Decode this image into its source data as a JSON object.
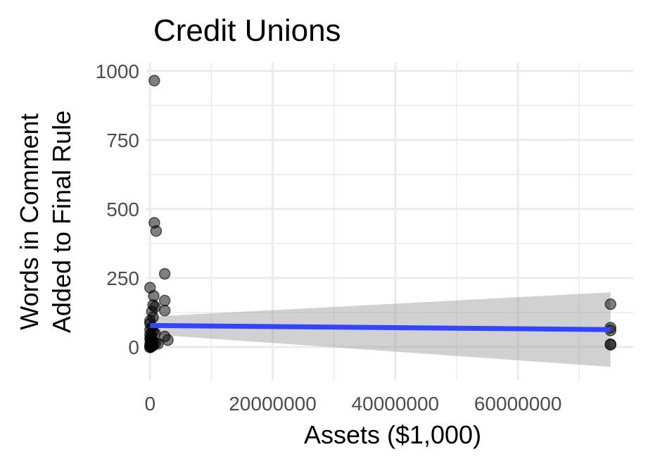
{
  "chart_data": {
    "type": "scatter",
    "title": "Credit Unions",
    "xlabel": "Assets ($1,000)",
    "ylabel_lines": [
      "Words in Comment",
      "Added to Final Rule"
    ],
    "x_ticks": [
      0,
      20000000,
      40000000,
      60000000
    ],
    "x_tick_labels": [
      "0",
      "20000000",
      "40000000",
      "60000000"
    ],
    "y_ticks": [
      0,
      250,
      500,
      750,
      1000
    ],
    "y_tick_labels": [
      "0",
      "250",
      "500",
      "750",
      "1000"
    ],
    "xlim": [
      -600000,
      78800000
    ],
    "ylim": [
      -120,
      1030
    ],
    "grid": true,
    "legend": "none",
    "points": [
      {
        "x": 700000,
        "y": 965
      },
      {
        "x": 700000,
        "y": 450
      },
      {
        "x": 1000000,
        "y": 420
      },
      {
        "x": 2400000,
        "y": 265
      },
      {
        "x": 0,
        "y": 215
      },
      {
        "x": 600000,
        "y": 185
      },
      {
        "x": 2400000,
        "y": 168
      },
      {
        "x": 500000,
        "y": 152
      },
      {
        "x": 800000,
        "y": 145
      },
      {
        "x": 2400000,
        "y": 132
      },
      {
        "x": 300000,
        "y": 128
      },
      {
        "x": 500000,
        "y": 108
      },
      {
        "x": 0,
        "y": 95
      },
      {
        "x": 0,
        "y": 85
      },
      {
        "x": 300000,
        "y": 70
      },
      {
        "x": 0,
        "y": 62
      },
      {
        "x": 500000,
        "y": 55
      },
      {
        "x": 800000,
        "y": 50
      },
      {
        "x": 0,
        "y": 45
      },
      {
        "x": 200000,
        "y": 40
      },
      {
        "x": 2400000,
        "y": 38
      },
      {
        "x": 2900000,
        "y": 25
      },
      {
        "x": 0,
        "y": 30
      },
      {
        "x": 100000,
        "y": 25
      },
      {
        "x": 300000,
        "y": 22
      },
      {
        "x": 600000,
        "y": 18
      },
      {
        "x": 900000,
        "y": 15
      },
      {
        "x": 1300000,
        "y": 12
      },
      {
        "x": 0,
        "y": 10
      },
      {
        "x": 200000,
        "y": 8
      },
      {
        "x": 500000,
        "y": 5
      },
      {
        "x": 0,
        "y": 2
      },
      {
        "x": 100000,
        "y": 0
      },
      {
        "x": 0,
        "y": -2
      },
      {
        "x": 300000,
        "y": 3
      },
      {
        "x": 75100000,
        "y": 155
      },
      {
        "x": 75100000,
        "y": 70
      },
      {
        "x": 75100000,
        "y": 60
      },
      {
        "x": 75100000,
        "y": 10
      },
      {
        "x": 75100000,
        "y": 8
      }
    ],
    "trend_line": {
      "x": [
        0,
        75100000
      ],
      "y": [
        78,
        63
      ]
    },
    "confidence_band": {
      "x": [
        0,
        75100000
      ],
      "upper": [
        110,
        198
      ],
      "lower": [
        46,
        -72
      ]
    },
    "colors": {
      "point_fill": "#000000",
      "point_opacity": 0.5,
      "trend": "#3344ff",
      "band": "#999999",
      "band_opacity": 0.45,
      "grid": "#ebebeb",
      "tick_text": "#4d4d4d"
    }
  }
}
